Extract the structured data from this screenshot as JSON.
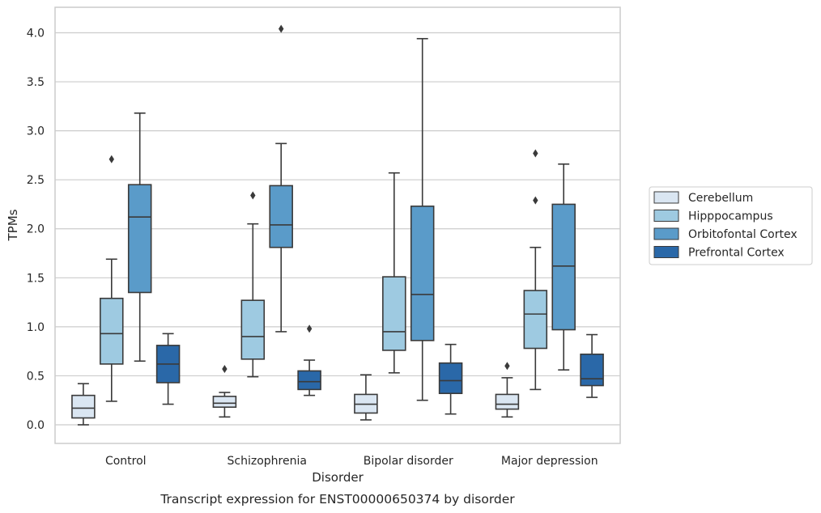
{
  "chart_data": {
    "type": "box",
    "title": "",
    "caption": "Transcript expression for ENST00000650374 by disorder",
    "xlabel": "Disorder",
    "ylabel": "TPMs",
    "ylim": [
      -0.19,
      4.26
    ],
    "yticks": [
      0.0,
      0.5,
      1.0,
      1.5,
      2.0,
      2.5,
      3.0,
      3.5,
      4.0
    ],
    "ytick_labels": [
      "0.0",
      "0.5",
      "1.0",
      "1.5",
      "2.0",
      "2.5",
      "3.0",
      "3.5",
      "4.0"
    ],
    "categories": [
      "Control",
      "Schizophrenia",
      "Bipolar disorder",
      "Major depression"
    ],
    "grid": "horizontal",
    "legend_position": "right",
    "series": [
      {
        "name": "Cerebellum",
        "color": "#dae6f2",
        "boxes": [
          {
            "whisker_low": 0.0,
            "q1": 0.07,
            "median": 0.17,
            "q3": 0.3,
            "whisker_high": 0.42,
            "outliers": []
          },
          {
            "whisker_low": 0.08,
            "q1": 0.18,
            "median": 0.22,
            "q3": 0.29,
            "whisker_high": 0.33,
            "outliers": [
              0.57
            ]
          },
          {
            "whisker_low": 0.05,
            "q1": 0.12,
            "median": 0.21,
            "q3": 0.31,
            "whisker_high": 0.51,
            "outliers": []
          },
          {
            "whisker_low": 0.08,
            "q1": 0.16,
            "median": 0.21,
            "q3": 0.31,
            "whisker_high": 0.48,
            "outliers": [
              0.6
            ]
          }
        ]
      },
      {
        "name": "Hipppocampus",
        "color": "#9ecae1",
        "boxes": [
          {
            "whisker_low": 0.24,
            "q1": 0.62,
            "median": 0.93,
            "q3": 1.29,
            "whisker_high": 1.69,
            "outliers": [
              2.71
            ]
          },
          {
            "whisker_low": 0.49,
            "q1": 0.67,
            "median": 0.9,
            "q3": 1.27,
            "whisker_high": 2.05,
            "outliers": [
              2.34
            ]
          },
          {
            "whisker_low": 0.53,
            "q1": 0.76,
            "median": 0.95,
            "q3": 1.51,
            "whisker_high": 2.57,
            "outliers": []
          },
          {
            "whisker_low": 0.36,
            "q1": 0.78,
            "median": 1.13,
            "q3": 1.37,
            "whisker_high": 1.81,
            "outliers": [
              2.29,
              2.77
            ]
          }
        ]
      },
      {
        "name": "Orbitofontal Cortex",
        "color": "#5a9bc9",
        "boxes": [
          {
            "whisker_low": 0.65,
            "q1": 1.35,
            "median": 2.12,
            "q3": 2.45,
            "whisker_high": 3.18,
            "outliers": []
          },
          {
            "whisker_low": 0.95,
            "q1": 1.81,
            "median": 2.04,
            "q3": 2.44,
            "whisker_high": 2.87,
            "outliers": [
              4.04
            ]
          },
          {
            "whisker_low": 0.25,
            "q1": 0.86,
            "median": 1.33,
            "q3": 2.23,
            "whisker_high": 3.94,
            "outliers": []
          },
          {
            "whisker_low": 0.56,
            "q1": 0.97,
            "median": 1.62,
            "q3": 2.25,
            "whisker_high": 2.66,
            "outliers": []
          }
        ]
      },
      {
        "name": "Prefrontal Cortex",
        "color": "#2a68a8",
        "boxes": [
          {
            "whisker_low": 0.21,
            "q1": 0.43,
            "median": 0.62,
            "q3": 0.81,
            "whisker_high": 0.93,
            "outliers": []
          },
          {
            "whisker_low": 0.3,
            "q1": 0.36,
            "median": 0.44,
            "q3": 0.55,
            "whisker_high": 0.66,
            "outliers": [
              0.98
            ]
          },
          {
            "whisker_low": 0.11,
            "q1": 0.32,
            "median": 0.45,
            "q3": 0.63,
            "whisker_high": 0.82,
            "outliers": []
          },
          {
            "whisker_low": 0.28,
            "q1": 0.4,
            "median": 0.47,
            "q3": 0.72,
            "whisker_high": 0.92,
            "outliers": []
          }
        ]
      }
    ]
  }
}
